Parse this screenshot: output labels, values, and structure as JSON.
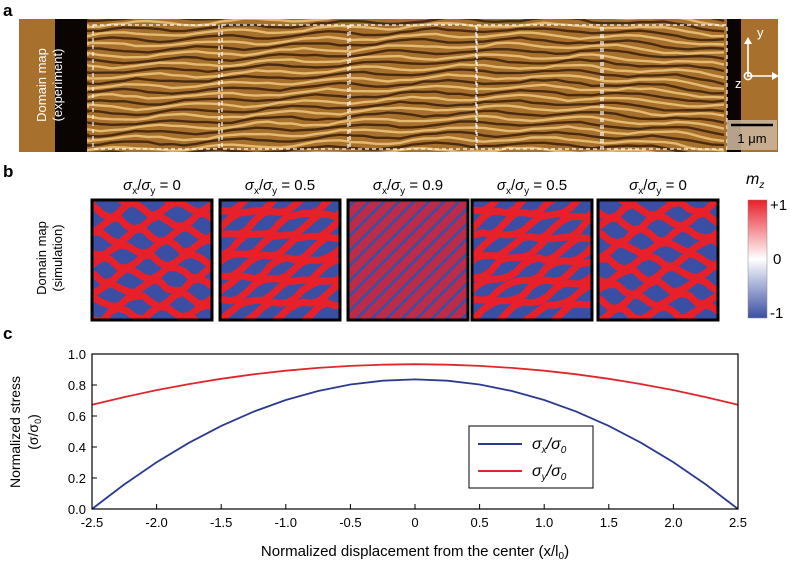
{
  "panel_a": {
    "letter": "a",
    "side_label_line1": "Domain map",
    "side_label_line2": "(experiment)",
    "axis_y": "y",
    "axis_x": "x",
    "axis_z": "z",
    "scale_bar": "1 μm",
    "colors": {
      "dark": "#3a1f0c",
      "mid": "#a8702d",
      "light": "#f0c77a",
      "edge": "#0a0503",
      "dash": "#ffffff"
    }
  },
  "panel_b": {
    "letter": "b",
    "side_label_line1": "Domain map",
    "side_label_line2": "(simulation)",
    "maps": [
      {
        "num": "σ",
        "num_sub": "x",
        "den": "σ",
        "den_sub": "y",
        "value": "= 0",
        "pattern": "labyrinth"
      },
      {
        "num": "σ",
        "num_sub": "x",
        "den": "σ",
        "den_sub": "y",
        "value": "= 0.5",
        "pattern": "partial"
      },
      {
        "num": "σ",
        "num_sub": "x",
        "den": "σ",
        "den_sub": "y",
        "value": "= 0.9",
        "pattern": "stripes"
      },
      {
        "num": "σ",
        "num_sub": "x",
        "den": "σ",
        "den_sub": "y",
        "value": "= 0.5",
        "pattern": "partial"
      },
      {
        "num": "σ",
        "num_sub": "x",
        "den": "σ",
        "den_sub": "y",
        "value": "= 0",
        "pattern": "labyrinth"
      }
    ],
    "colorbar": {
      "title": "m",
      "title_sub": "z",
      "max_label": "+1",
      "mid_label": "0",
      "min_label": "-1",
      "color_max": "#e8202a",
      "color_mid": "#ffffff",
      "color_min": "#3a4fa3"
    }
  },
  "panel_c": {
    "letter": "c"
  },
  "chart_data": {
    "type": "line",
    "xlabel": "Normalized displacement from the center (x/l",
    "xlabel_sub": "0",
    "xlabel_end": ")",
    "ylabel_line1": "Normalized stress",
    "ylabel_line2": "(σ/σ",
    "ylabel_line2_sub": "0",
    "ylabel_line2_end": ")",
    "xlim": [
      -2.5,
      2.5
    ],
    "ylim": [
      0.0,
      1.0
    ],
    "x_ticks": [
      -2.5,
      -2.0,
      -1.5,
      -1.0,
      -0.5,
      0,
      0.5,
      1.0,
      1.5,
      2.0,
      2.5
    ],
    "x_tick_labels": [
      "-2.5",
      "-2.0",
      "-1.5",
      "-1.0",
      "-0.5",
      "0",
      "0.5",
      "1.0",
      "1.5",
      "2.0",
      "2.5"
    ],
    "y_ticks": [
      0.0,
      0.2,
      0.4,
      0.6,
      0.8,
      1.0
    ],
    "y_tick_labels": [
      "0.0",
      "0.2",
      "0.4",
      "0.6",
      "0.8",
      "1.0"
    ],
    "legend_position": "lower-right",
    "series": [
      {
        "legend_num": "σ",
        "legend_num_sub": "x",
        "legend_den": "σ",
        "legend_den_sub": "0",
        "color": "#2b3a8f",
        "x": [
          -2.5,
          -2.25,
          -2.0,
          -1.75,
          -1.5,
          -1.25,
          -1.0,
          -0.75,
          -0.5,
          -0.25,
          0,
          0.25,
          0.5,
          0.75,
          1.0,
          1.25,
          1.5,
          1.75,
          2.0,
          2.25,
          2.5
        ],
        "y": [
          0.0,
          0.159,
          0.302,
          0.427,
          0.536,
          0.628,
          0.703,
          0.761,
          0.803,
          0.828,
          0.836,
          0.828,
          0.803,
          0.761,
          0.703,
          0.628,
          0.536,
          0.427,
          0.302,
          0.159,
          0.0
        ]
      },
      {
        "legend_num": "σ",
        "legend_num_sub": "y",
        "legend_den": "σ",
        "legend_den_sub": "0",
        "color": "#e0262b",
        "x": [
          -2.5,
          -2.25,
          -2.0,
          -1.75,
          -1.5,
          -1.25,
          -1.0,
          -0.75,
          -0.5,
          -0.25,
          0,
          0.25,
          0.5,
          0.75,
          1.0,
          1.25,
          1.5,
          1.75,
          2.0,
          2.25,
          2.5
        ],
        "y": [
          0.672,
          0.722,
          0.767,
          0.806,
          0.84,
          0.869,
          0.892,
          0.91,
          0.923,
          0.931,
          0.934,
          0.931,
          0.923,
          0.91,
          0.892,
          0.869,
          0.84,
          0.806,
          0.767,
          0.722,
          0.672
        ]
      }
    ]
  }
}
